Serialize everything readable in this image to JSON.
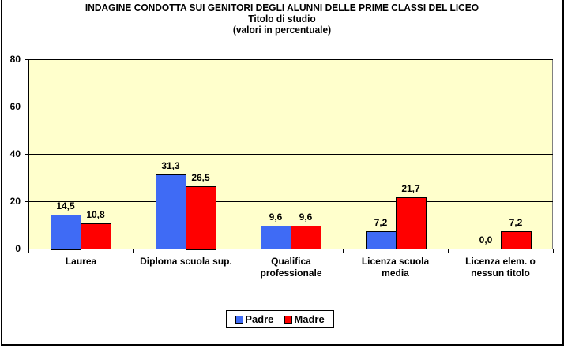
{
  "chart_data": {
    "type": "bar",
    "title": "INDAGINE CONDOTTA  SUI GENITORI DEGLI ALUNNI DELLE PRIME CLASSI DEL LICEO",
    "subtitle": "Titolo di studio",
    "subtitle2": "(valori in percentuale)",
    "xlabel": "",
    "ylabel": "",
    "ylim": [
      0,
      80
    ],
    "yticks": [
      "0",
      "20",
      "40",
      "60",
      "80"
    ],
    "grid": true,
    "legend_position": "bottom",
    "categories": [
      [
        "Laurea"
      ],
      [
        "Diploma scuola sup."
      ],
      [
        "Qualifica",
        "professionale"
      ],
      [
        "Licenza scuola",
        "media"
      ],
      [
        "Licenza elem. o",
        "nessun titolo"
      ]
    ],
    "series": [
      {
        "name": "Padre",
        "color": "#3F6BF5",
        "values": [
          14.5,
          31.3,
          9.6,
          7.2,
          0.0
        ],
        "labels": [
          "14,5",
          "31,3",
          "9,6",
          "7,2",
          "0,0"
        ]
      },
      {
        "name": "Madre",
        "color": "#FF0000",
        "values": [
          10.8,
          26.5,
          9.6,
          21.7,
          7.2
        ],
        "labels": [
          "10,8",
          "26,5",
          "9,6",
          "21,7",
          "7,2"
        ]
      }
    ],
    "plot_background": "#FFFFCC"
  }
}
